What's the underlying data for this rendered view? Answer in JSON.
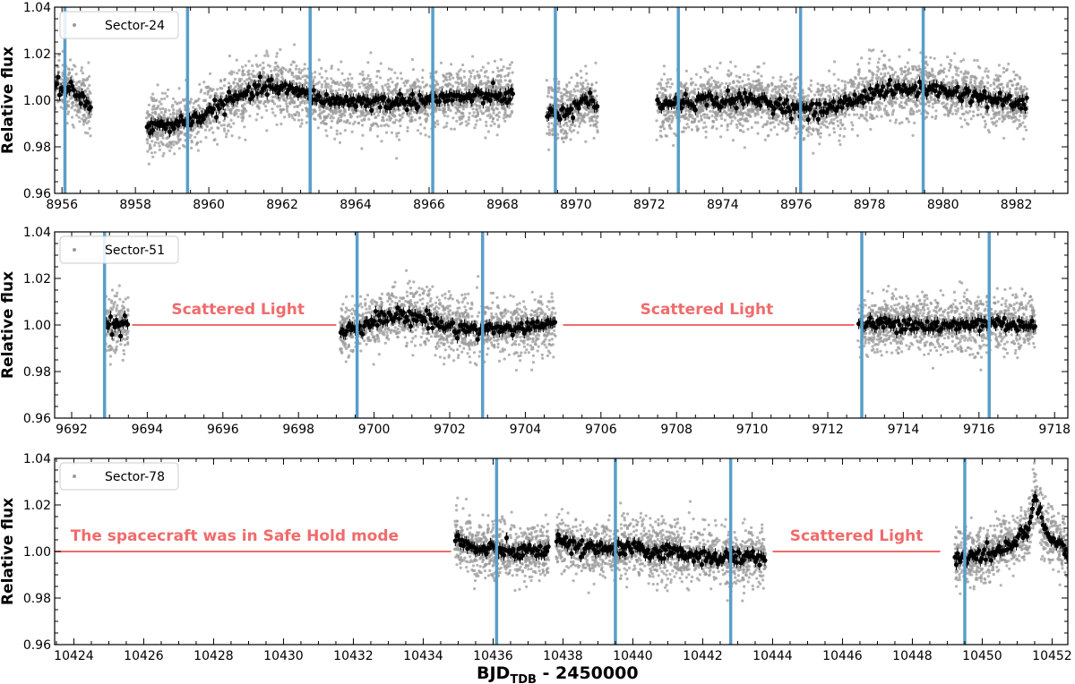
{
  "chart_data": [
    {
      "type": "scatter",
      "panel": "sector-24",
      "legend": "Sector-24",
      "legend_location": "top-left",
      "ylabel": "Relative flux",
      "xlim": [
        8955.8,
        8983.4
      ],
      "ylim": [
        0.96,
        1.04
      ],
      "xticks": [
        8956,
        8958,
        8960,
        8962,
        8964,
        8966,
        8968,
        8970,
        8972,
        8974,
        8976,
        8978,
        8980,
        8982
      ],
      "yticks": [
        0.96,
        0.98,
        1.0,
        1.02,
        1.04
      ],
      "ytick_labels": [
        "0.96",
        "0.98",
        "1.00",
        "1.02",
        "1.04"
      ],
      "transit_times": [
        8956.08,
        8959.42,
        8962.76,
        8966.1,
        8969.44,
        8972.79,
        8976.12,
        8979.46
      ],
      "segments": [
        {
          "start": 8955.8,
          "end": 8956.8,
          "trend": [
            [
              8955.8,
              1.006
            ],
            [
              8956.3,
              1.004
            ],
            [
              8956.8,
              0.998
            ]
          ],
          "scatter": 0.006
        },
        {
          "start": 8958.3,
          "end": 8968.3,
          "trend": [
            [
              8958.3,
              0.988
            ],
            [
              8959.5,
              0.991
            ],
            [
              8960.6,
              1.0
            ],
            [
              8961.6,
              1.006
            ],
            [
              8962.3,
              1.004
            ],
            [
              8963.2,
              1.0
            ],
            [
              8965.0,
              0.999
            ],
            [
              8966.5,
              1.001
            ],
            [
              8968.3,
              1.002
            ]
          ],
          "scatter": 0.006
        },
        {
          "start": 8969.2,
          "end": 8970.6,
          "trend": [
            [
              8969.2,
              0.994
            ],
            [
              8969.8,
              0.996
            ],
            [
              8970.3,
              1.001
            ],
            [
              8970.6,
              0.995
            ]
          ],
          "scatter": 0.006
        },
        {
          "start": 8972.2,
          "end": 8982.3,
          "trend": [
            [
              8972.2,
              0.998
            ],
            [
              8973.5,
              1.0
            ],
            [
              8975.0,
              1.0
            ],
            [
              8976.4,
              0.995
            ],
            [
              8977.2,
              0.998
            ],
            [
              8978.2,
              1.004
            ],
            [
              8979.5,
              1.005
            ],
            [
              8980.5,
              1.003
            ],
            [
              8981.5,
              1.0
            ],
            [
              8982.3,
              0.998
            ]
          ],
          "scatter": 0.006
        }
      ],
      "annotations": []
    },
    {
      "type": "scatter",
      "panel": "sector-51",
      "legend": "Sector-51",
      "legend_location": "top-left",
      "ylabel": "Relative flux",
      "xlim": [
        9691.55,
        9718.35
      ],
      "ylim": [
        0.96,
        1.04
      ],
      "xticks": [
        9692,
        9694,
        9696,
        9698,
        9700,
        9702,
        9704,
        9706,
        9708,
        9710,
        9712,
        9714,
        9716,
        9718
      ],
      "yticks": [
        0.96,
        0.98,
        1.0,
        1.02,
        1.04
      ],
      "ytick_labels": [
        "0.96",
        "0.98",
        "1.00",
        "1.02",
        "1.04"
      ],
      "transit_times": [
        9692.87,
        9699.55,
        9702.87,
        9712.9,
        9716.27
      ],
      "segments": [
        {
          "start": 9692.9,
          "end": 9693.5,
          "trend": [
            [
              9692.9,
              1.0
            ],
            [
              9693.5,
              1.0
            ]
          ],
          "scatter": 0.006
        },
        {
          "start": 9699.1,
          "end": 9704.8,
          "trend": [
            [
              9699.1,
              0.997
            ],
            [
              9699.8,
              1.001
            ],
            [
              9700.5,
              1.004
            ],
            [
              9701.3,
              1.003
            ],
            [
              9702.0,
              0.999
            ],
            [
              9702.9,
              0.998
            ],
            [
              9704.0,
              0.999
            ],
            [
              9704.8,
              1.0
            ]
          ],
          "scatter": 0.006
        },
        {
          "start": 9712.8,
          "end": 9717.5,
          "trend": [
            [
              9712.8,
              1.0
            ],
            [
              9714.0,
              1.001
            ],
            [
              9715.0,
              0.999
            ],
            [
              9716.3,
              1.001
            ],
            [
              9717.5,
              1.0
            ]
          ],
          "scatter": 0.006
        }
      ],
      "annotations": [
        {
          "text": "Scattered Light",
          "line": [
            9693.6,
            9699.0
          ],
          "text_x": 9696.4
        },
        {
          "text": "Scattered Light",
          "line": [
            9705.0,
            9712.7
          ],
          "text_x": 9708.8
        }
      ]
    },
    {
      "type": "scatter",
      "panel": "sector-78",
      "legend": "Sector-78",
      "legend_location": "top-left",
      "ylabel": "Relative flux",
      "xlabel_main": "BJD",
      "xlabel_sub": "TDB",
      "xlabel_tail": " - 2450000",
      "xlim": [
        10423.45,
        10452.45
      ],
      "ylim": [
        0.96,
        1.04
      ],
      "xticks": [
        10424,
        10426,
        10428,
        10430,
        10432,
        10434,
        10436,
        10438,
        10440,
        10442,
        10444,
        10446,
        10448,
        10450,
        10452
      ],
      "yticks": [
        0.96,
        0.98,
        1.0,
        1.02,
        1.04
      ],
      "ytick_labels": [
        "0.96",
        "0.98",
        "1.00",
        "1.02",
        "1.04"
      ],
      "transit_times": [
        10436.1,
        10439.5,
        10442.8,
        10449.5
      ],
      "segments": [
        {
          "start": 10434.9,
          "end": 10437.6,
          "trend": [
            [
              10434.9,
              1.006
            ],
            [
              10435.4,
              1.001
            ],
            [
              10436.5,
              1.0
            ],
            [
              10437.6,
              1.0
            ]
          ],
          "scatter": 0.006
        },
        {
          "start": 10437.8,
          "end": 10443.8,
          "trend": [
            [
              10437.8,
              1.005
            ],
            [
              10438.5,
              1.001
            ],
            [
              10440.0,
              1.001
            ],
            [
              10441.5,
              0.999
            ],
            [
              10442.8,
              0.997
            ],
            [
              10443.8,
              0.998
            ]
          ],
          "scatter": 0.006
        },
        {
          "start": 10449.2,
          "end": 10452.45,
          "trend": [
            [
              10449.2,
              0.997
            ],
            [
              10450.0,
              0.998
            ],
            [
              10450.8,
              1.003
            ],
            [
              10451.3,
              1.008
            ],
            [
              10451.5,
              1.024
            ],
            [
              10451.8,
              1.009
            ],
            [
              10452.45,
              1.0
            ]
          ],
          "scatter": 0.006
        }
      ],
      "annotations": [
        {
          "text": "The spacecraft was in Safe Hold mode",
          "line": [
            10423.45,
            10434.8
          ],
          "text_x": 10428.6
        },
        {
          "text": "Scattered Light",
          "line": [
            10444.0,
            10448.8
          ],
          "text_x": 10446.4
        }
      ]
    }
  ],
  "colors": {
    "background": "#ffffff",
    "scatter_points": "#9a9a9a",
    "binned_points": "#000000",
    "transit_lines": "#5a9ec9",
    "annotation": "#f06b6b",
    "axes": "#000000"
  }
}
